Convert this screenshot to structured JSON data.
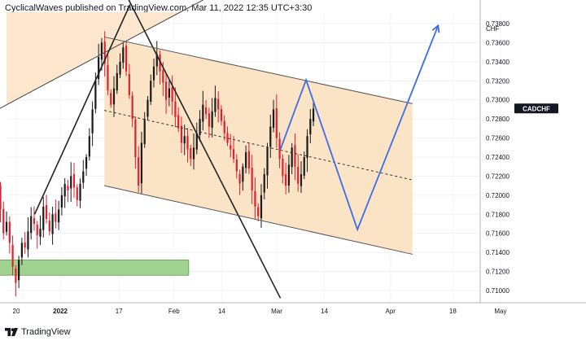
{
  "header": {
    "publisher_text": "CyclicalWaves published on TradingView.com, Mar 11, 2022 12:35 UTC+3:30"
  },
  "footer": {
    "logo_icon": "tradingview-logo-icon",
    "brand": "TradingView"
  },
  "chart_data": {
    "type": "candlestick",
    "symbol": "CADCHF",
    "currency": "CHF",
    "last_price": 0.7291,
    "y_ticks": [
      0.71,
      0.712,
      0.714,
      0.716,
      0.718,
      0.72,
      0.722,
      0.724,
      0.726,
      0.728,
      0.73,
      0.732,
      0.734,
      0.736,
      0.738
    ],
    "y_tick_labels": [
      "0.71000",
      "0.71200",
      "0.71400",
      "0.71600",
      "0.71800",
      "0.72000",
      "0.72200",
      "0.72400",
      "0.72600",
      "0.72800",
      "0.73000",
      "0.73200",
      "0.73400",
      "0.73600",
      "0.73800"
    ],
    "ylim": [
      0.7088,
      0.7392
    ],
    "x_tick_labels": [
      "20",
      "2022",
      "17",
      "Feb",
      "14",
      "Mar",
      "14",
      "Apr",
      "18",
      "May"
    ],
    "grid": true,
    "colors": {
      "up": "#1a1a1a",
      "down": "#e0202f",
      "channel_fill": "#fbe3c6",
      "support_zone": "#9fd38f",
      "projection": "#3d6de6",
      "trendline": "#222222",
      "badge": "#131722"
    },
    "annotations": {
      "channel": {
        "upper": [
          [
            "2022-01-13",
            0.7366
          ],
          [
            "2022-04-07",
            0.7296
          ]
        ],
        "middle": [
          [
            "2022-01-13",
            0.7289
          ],
          [
            "2022-04-07",
            0.7216
          ]
        ],
        "lower": [
          [
            "2022-01-13",
            0.721
          ],
          [
            "2022-04-07",
            0.7138
          ]
        ]
      },
      "support_zone": {
        "from": "2021-12-14",
        "to": "2022-02-05",
        "low": 0.7116,
        "high": 0.7132
      },
      "trendline_falling": [
        [
          "2022-01-19",
          0.741
        ],
        [
          "2022-03-02",
          0.7092
        ]
      ],
      "trendline_rising": [
        [
          "2021-12-14",
          0.7288
        ],
        [
          "2022-02-09",
          0.7405
        ]
      ],
      "trendline_steep": [
        [
          "2021-12-25",
          0.718
        ],
        [
          "2022-01-20",
          0.74
        ]
      ],
      "projection_path": [
        [
          "2022-03-02",
          0.7248
        ],
        [
          "2022-03-09",
          0.7321
        ],
        [
          "2022-03-23",
          0.7164
        ],
        [
          "2022-04-14",
          0.7378
        ]
      ]
    },
    "series_close": [
      0.7225,
      0.721,
      0.7185,
      0.716,
      0.7172,
      0.715,
      0.7125,
      0.7108,
      0.7132,
      0.715,
      0.7145,
      0.7162,
      0.7178,
      0.717,
      0.7158,
      0.7165,
      0.7188,
      0.7175,
      0.7162,
      0.718,
      0.7172,
      0.7185,
      0.72,
      0.7212,
      0.7205,
      0.722,
      0.7208,
      0.7195,
      0.7212,
      0.7225,
      0.724,
      0.7262,
      0.729,
      0.732,
      0.7345,
      0.736,
      0.7338,
      0.731,
      0.7295,
      0.7312,
      0.7328,
      0.734,
      0.7355,
      0.733,
      0.7305,
      0.728,
      0.724,
      0.721,
      0.7255,
      0.728,
      0.73,
      0.732,
      0.7335,
      0.7348,
      0.733,
      0.7318,
      0.73,
      0.7312,
      0.7298,
      0.7282,
      0.727,
      0.7255,
      0.7262,
      0.7248,
      0.7238,
      0.725,
      0.7265,
      0.728,
      0.7295,
      0.7285,
      0.7272,
      0.7288,
      0.7302,
      0.729,
      0.7278,
      0.7265,
      0.7255,
      0.7248,
      0.7238,
      0.7225,
      0.7212,
      0.723,
      0.7245,
      0.7228,
      0.7205,
      0.7188,
      0.7178,
      0.72,
      0.7222,
      0.725,
      0.7272,
      0.729,
      0.726,
      0.7238,
      0.722,
      0.721,
      0.7232,
      0.725,
      0.723,
      0.7212,
      0.7222,
      0.724,
      0.7262,
      0.728,
      0.7291
    ],
    "series_start": "2021-12-14",
    "series_end": "2022-03-11"
  }
}
